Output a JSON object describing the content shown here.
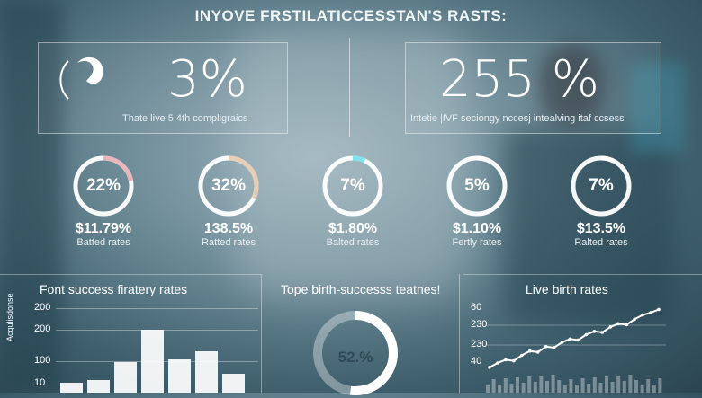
{
  "header": {
    "title": "INYOVE FRSTILATICCESSTAN'S RASTS:"
  },
  "top_left": {
    "value": "3%",
    "caption": "Thate live 5 4th compligraics"
  },
  "top_right": {
    "value": "255 %",
    "caption": "Intetie |IVF seciongy nccesj intealving itaf ccsess"
  },
  "rings": [
    {
      "value": "22%",
      "amount": "$11.79%",
      "label": "Batted rates",
      "color": "#e9b6bd",
      "progress": 0.22
    },
    {
      "value": "32%",
      "amount": "138.5%",
      "label": "Ratted rates",
      "color": "#e6cfb6",
      "progress": 0.32
    },
    {
      "value": "7%",
      "amount": "$1.80%",
      "label": "Balted rates",
      "color": "#7fe4ee",
      "progress": 0.07
    },
    {
      "value": "5%",
      "amount": "$1.10%",
      "label": "Fertly rates",
      "color": "#ffffff",
      "progress": 0.05
    },
    {
      "value": "7%",
      "amount": "$13.5%",
      "label": "Ralted rates",
      "color": "#ffffff",
      "progress": 0.07
    }
  ],
  "bottom_left": {
    "title": "Font success firatery rates",
    "y_ticks": [
      "200",
      "200",
      "100",
      "10"
    ],
    "axis_label": "Acqulisdonse",
    "chart_data": {
      "type": "bar",
      "values": [
        10,
        12,
        30,
        62,
        33,
        41,
        19
      ],
      "ylim": [
        0,
        200
      ]
    }
  },
  "bottom_middle": {
    "title": "Tope birth-successs teatnes!",
    "donut_value": "52.%",
    "progress": 0.52
  },
  "bottom_right": {
    "title": "Live birth rates",
    "y_ticks": [
      "60",
      "230",
      "230",
      "40"
    ],
    "chart_data": {
      "type": "line",
      "values": [
        5,
        9,
        12,
        11,
        16,
        20,
        19,
        24,
        23,
        28,
        31,
        30,
        35,
        38,
        37,
        42,
        45,
        44,
        49,
        53,
        55,
        58
      ],
      "ylim": [
        0,
        60
      ]
    }
  }
}
